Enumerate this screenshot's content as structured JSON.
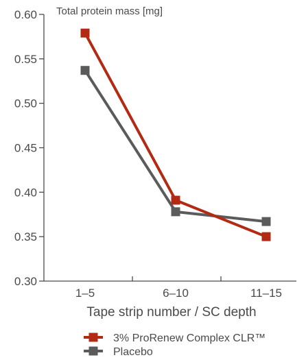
{
  "chart_data": {
    "type": "line",
    "title": "",
    "ylabel": "Total protein mass  [mg]",
    "xlabel": "Tape strip number / SC depth",
    "categories": [
      "1–5",
      "6–10",
      "11–15"
    ],
    "ylim": [
      0.3,
      0.6
    ],
    "yticks": [
      0.3,
      0.35,
      0.4,
      0.45,
      0.5,
      0.55,
      0.6
    ],
    "ytick_labels": [
      "0.30",
      "0.35",
      "0.40",
      "0.45",
      "0.50",
      "0.55",
      "0.60"
    ],
    "grid": false,
    "legend_position": "bottom",
    "series": [
      {
        "name": "3% ProRenew Complex CLR™",
        "color": "#b22a14",
        "values": [
          0.579,
          0.391,
          0.35
        ]
      },
      {
        "name": "Placebo",
        "color": "#5b5b5b",
        "values": [
          0.537,
          0.378,
          0.367
        ]
      }
    ]
  }
}
